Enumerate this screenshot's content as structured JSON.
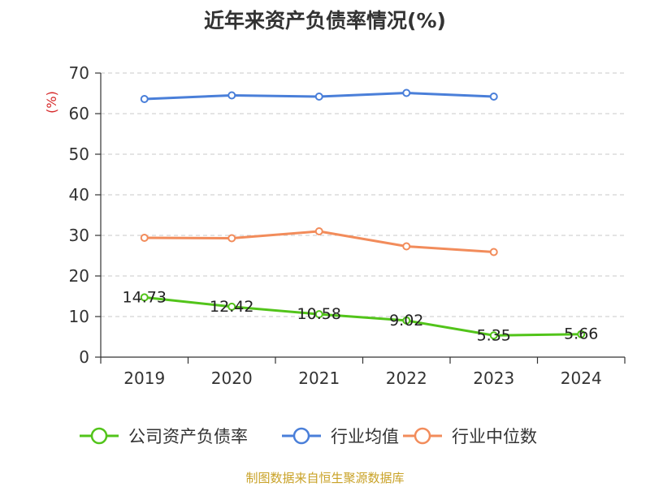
{
  "title": "近年来资产负债率情况(%)",
  "source": "制图数据来自恒生聚源数据库",
  "chart_data": {
    "type": "line",
    "title": "近年来资产负债率情况(%)",
    "ylabel": "(%)",
    "xlabel": "",
    "categories": [
      "2019",
      "2020",
      "2021",
      "2022",
      "2023",
      "2024"
    ],
    "ylim": [
      0,
      70
    ],
    "yticks": [
      0,
      10,
      20,
      30,
      40,
      50,
      60,
      70
    ],
    "grid": "horizontal-dashed",
    "legend_position": "bottom",
    "unit_color": "#d62728",
    "series": [
      {
        "name": "公司资产负债率",
        "color": "#52c41a",
        "values": [
          14.73,
          12.42,
          10.58,
          9.02,
          5.35,
          5.66
        ],
        "labels": [
          "14.73",
          "12.42",
          "10.58",
          "9.02",
          "5.35",
          "5.66"
        ]
      },
      {
        "name": "行业均值",
        "color": "#4a7fd9",
        "values": [
          63.6,
          64.5,
          64.2,
          65.1,
          64.2,
          null
        ]
      },
      {
        "name": "行业中位数",
        "color": "#f28c5b",
        "values": [
          29.4,
          29.3,
          31.0,
          27.3,
          25.9,
          null
        ]
      }
    ]
  }
}
